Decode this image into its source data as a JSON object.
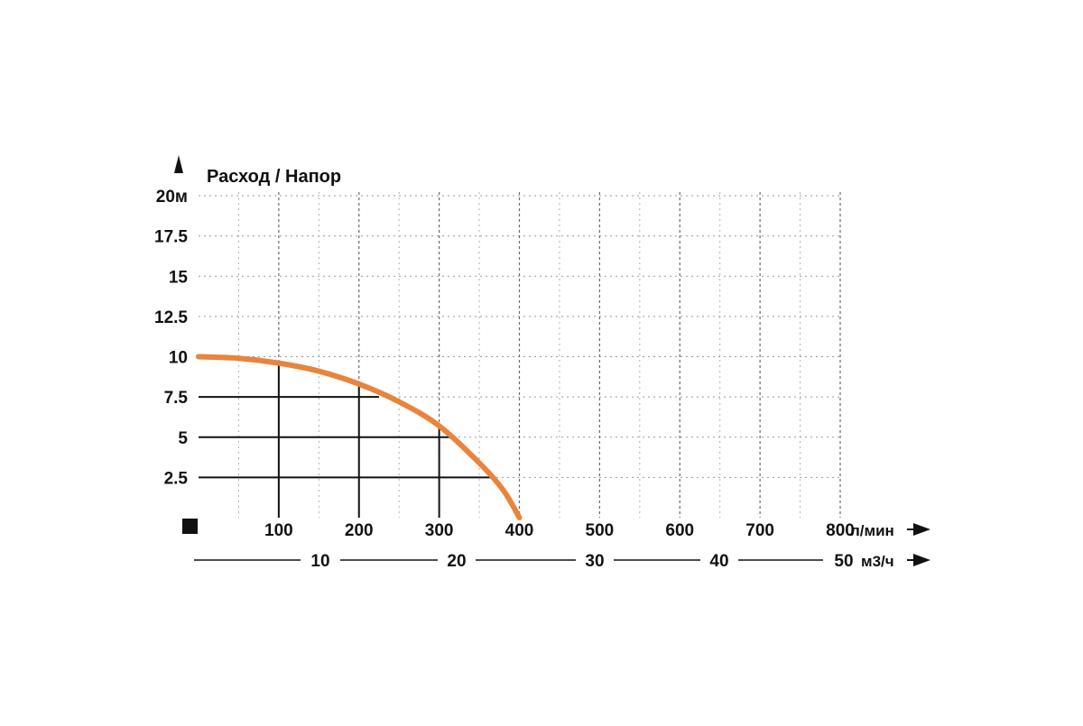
{
  "chart_data": {
    "type": "line",
    "title": "Расход / Напор",
    "y_axis": {
      "ticks": [
        2.5,
        5,
        7.5,
        10,
        12.5,
        15,
        17.5,
        20
      ],
      "tick_labels": [
        "2.5",
        "5",
        "7.5",
        "10",
        "12.5",
        "15",
        "17.5",
        "20м"
      ],
      "range": [
        0,
        20
      ]
    },
    "x_axis": {
      "ticks": [
        100,
        200,
        300,
        400,
        500,
        600,
        700,
        800
      ],
      "tick_labels": [
        "100",
        "200",
        "300",
        "400",
        "500",
        "600",
        "700",
        "800"
      ],
      "unit": "л/мин",
      "range": [
        0,
        800
      ]
    },
    "x2_axis": {
      "ticks": [
        10,
        20,
        30,
        40,
        50
      ],
      "tick_labels": [
        "10",
        "20",
        "30",
        "40",
        "50"
      ],
      "unit": "м3/ч"
    },
    "grid": true,
    "series": [
      {
        "color": "#E8843C",
        "x": [
          0,
          50,
          100,
          150,
          200,
          250,
          300,
          350,
          380,
          400
        ],
        "y": [
          10,
          9.9,
          9.6,
          9.1,
          8.3,
          7.2,
          5.7,
          3.4,
          1.7,
          0
        ]
      }
    ],
    "reference_lines": [
      {
        "y": 2.5,
        "x_end": 365
      },
      {
        "y": 5,
        "x_end": 320
      },
      {
        "y": 7.5,
        "x_end": 225
      }
    ],
    "reference_verticals": [
      {
        "x": 100,
        "y_end": 9.6
      },
      {
        "x": 200,
        "y_end": 8.3
      },
      {
        "x": 300,
        "y_end": 5.7
      }
    ]
  }
}
